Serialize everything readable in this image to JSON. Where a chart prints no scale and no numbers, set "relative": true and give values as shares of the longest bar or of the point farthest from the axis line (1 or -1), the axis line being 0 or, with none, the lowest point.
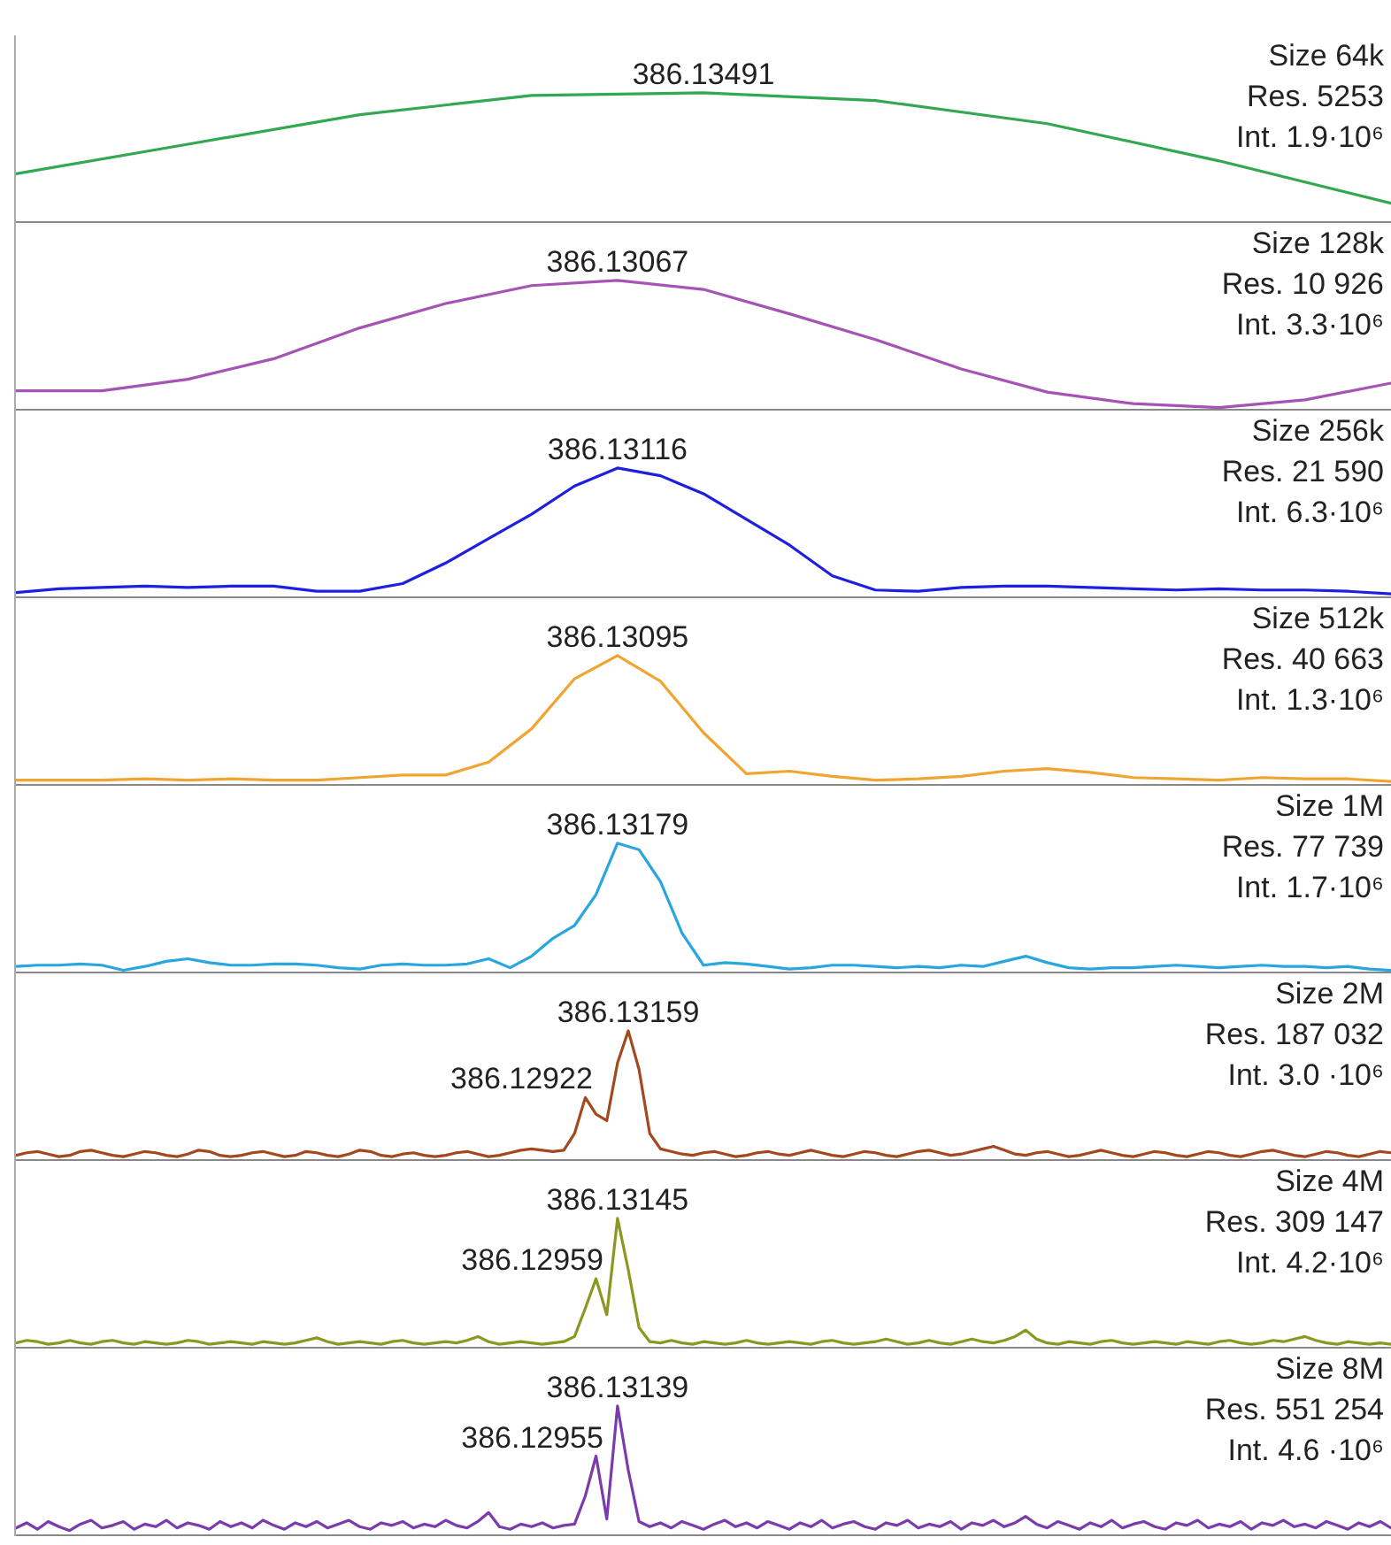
{
  "chart_data": [
    {
      "type": "line",
      "relative": true,
      "tick_labels": false,
      "color": "#33a852",
      "categories": [
        null,
        null,
        null,
        null,
        null,
        null,
        null,
        null,
        null
      ],
      "values": [
        0.37,
        0.6,
        0.83,
        0.98,
        1.0,
        0.94,
        0.76,
        0.47,
        0.14
      ],
      "annotations": [
        {
          "text": "386.13491",
          "y": 1.0
        },
        "Size 64k",
        "Res. 5253",
        "Int. 1.9·10⁶"
      ]
    },
    {
      "type": "line",
      "relative": true,
      "tick_labels": false,
      "color": "#a553b5",
      "categories": [
        null,
        null,
        null,
        null,
        null,
        null,
        null,
        null,
        null,
        null,
        null,
        null,
        null,
        null,
        null,
        null,
        null
      ],
      "values": [
        0.14,
        0.14,
        0.23,
        0.39,
        0.63,
        0.82,
        0.96,
        1.0,
        0.93,
        0.74,
        0.54,
        0.31,
        0.13,
        0.04,
        0.01,
        0.07,
        0.2
      ],
      "annotations": [
        {
          "text": "386.13067",
          "y": 1.0
        },
        "Size 128k",
        "Res. 10 926",
        "Int. 3.3·10⁶"
      ]
    },
    {
      "type": "line",
      "relative": true,
      "tick_labels": false,
      "color": "#1f1fe0",
      "categories": [
        null,
        null,
        null,
        null,
        null,
        null,
        null,
        null,
        null,
        null,
        null,
        null,
        null,
        null,
        null,
        null,
        null,
        null,
        null,
        null,
        null,
        null,
        null,
        null,
        null,
        null,
        null,
        null,
        null,
        null,
        null,
        null,
        null
      ],
      "values": [
        0.03,
        0.06,
        0.07,
        0.08,
        0.07,
        0.08,
        0.08,
        0.04,
        0.04,
        0.1,
        0.26,
        0.45,
        0.64,
        0.86,
        1.0,
        0.94,
        0.8,
        0.6,
        0.4,
        0.16,
        0.05,
        0.04,
        0.07,
        0.08,
        0.08,
        0.07,
        0.06,
        0.05,
        0.06,
        0.05,
        0.05,
        0.04,
        0.02
      ],
      "annotations": [
        {
          "text": "386.13116",
          "y": 1.0
        },
        "Size 256k",
        "Res. 21 590",
        "Int. 6.3·10⁶"
      ]
    },
    {
      "type": "line",
      "relative": true,
      "tick_labels": false,
      "color": "#f0a532",
      "categories": [
        null,
        null,
        null,
        null,
        null,
        null,
        null,
        null,
        null,
        null,
        null,
        null,
        null,
        null,
        null,
        null,
        null,
        null,
        null,
        null,
        null,
        null,
        null,
        null,
        null,
        null,
        null,
        null,
        null,
        null,
        null,
        null,
        null
      ],
      "values": [
        0.03,
        0.03,
        0.03,
        0.04,
        0.03,
        0.04,
        0.03,
        0.03,
        0.05,
        0.07,
        0.07,
        0.17,
        0.43,
        0.82,
        1.0,
        0.8,
        0.4,
        0.08,
        0.1,
        0.06,
        0.03,
        0.04,
        0.06,
        0.1,
        0.12,
        0.09,
        0.05,
        0.04,
        0.03,
        0.05,
        0.04,
        0.04,
        0.02
      ],
      "annotations": [
        {
          "text": "386.13095",
          "y": 1.0
        },
        "Size 512k",
        "Res. 40 663",
        "Int. 1.3·10⁶"
      ]
    },
    {
      "type": "line",
      "relative": true,
      "tick_labels": false,
      "color": "#2aa6de",
      "categories": [
        null,
        null,
        null,
        null,
        null,
        null,
        null,
        null,
        null,
        null,
        null,
        null,
        null,
        null,
        null,
        null,
        null,
        null,
        null,
        null,
        null,
        null,
        null,
        null,
        null,
        null,
        null,
        null,
        null,
        null,
        null,
        null,
        null,
        null,
        null,
        null,
        null,
        null,
        null,
        null,
        null,
        null,
        null,
        null,
        null,
        null,
        null,
        null,
        null,
        null,
        null,
        null,
        null,
        null,
        null,
        null,
        null,
        null,
        null,
        null,
        null,
        null,
        null,
        null,
        null
      ],
      "values": [
        0.04,
        0.05,
        0.05,
        0.06,
        0.05,
        0.01,
        0.04,
        0.08,
        0.1,
        0.07,
        0.05,
        0.05,
        0.06,
        0.06,
        0.05,
        0.03,
        0.02,
        0.05,
        0.06,
        0.05,
        0.05,
        0.06,
        0.1,
        0.03,
        0.12,
        0.26,
        0.36,
        0.6,
        1.0,
        0.95,
        0.7,
        0.3,
        0.05,
        0.07,
        0.06,
        0.04,
        0.02,
        0.03,
        0.05,
        0.05,
        0.04,
        0.03,
        0.04,
        0.03,
        0.05,
        0.04,
        0.08,
        0.12,
        0.07,
        0.03,
        0.02,
        0.03,
        0.03,
        0.04,
        0.05,
        0.04,
        0.03,
        0.04,
        0.05,
        0.04,
        0.04,
        0.03,
        0.04,
        0.02,
        0.01
      ],
      "annotations": [
        {
          "text": "386.13179",
          "y": 1.0
        },
        "Size 1M",
        "Res. 77 739",
        "Int. 1.7·10⁶"
      ]
    },
    {
      "type": "line",
      "relative": true,
      "tick_labels": false,
      "color": "#a3481f",
      "categories": [
        null,
        null,
        null,
        null,
        null,
        null,
        null,
        null,
        null,
        null,
        null,
        null,
        null,
        null,
        null,
        null,
        null,
        null,
        null,
        null,
        null,
        null,
        null,
        null,
        null,
        null,
        null,
        null,
        null,
        null,
        null,
        null,
        null,
        null,
        null,
        null,
        null,
        null,
        null,
        null,
        null,
        null,
        null,
        null,
        null,
        null,
        null,
        null,
        null,
        null,
        null,
        null,
        null,
        null,
        null,
        null,
        null,
        null,
        null,
        null,
        null,
        null,
        null,
        null,
        null,
        null,
        null,
        null,
        null,
        null,
        null,
        null,
        null,
        null,
        null,
        null,
        null,
        null,
        null,
        null,
        null,
        null,
        null,
        null,
        null,
        null,
        null,
        null,
        null,
        null,
        null,
        null,
        null,
        null,
        null,
        null,
        null,
        null,
        null,
        null,
        null,
        null,
        null,
        null,
        null,
        null,
        null,
        null,
        null,
        null,
        null,
        null,
        null,
        null,
        null,
        null,
        null,
        null,
        null,
        null,
        null,
        null,
        null,
        null,
        null,
        null,
        null,
        null,
        null
      ],
      "values": [
        0.03,
        0.05,
        0.06,
        0.04,
        0.02,
        0.03,
        0.06,
        0.07,
        0.05,
        0.03,
        0.02,
        0.04,
        0.06,
        0.05,
        0.03,
        0.02,
        0.04,
        0.07,
        0.06,
        0.03,
        0.02,
        0.03,
        0.05,
        0.06,
        0.04,
        0.02,
        0.03,
        0.06,
        0.05,
        0.03,
        0.02,
        0.04,
        0.07,
        0.06,
        0.03,
        0.02,
        0.04,
        0.05,
        0.03,
        0.02,
        0.03,
        0.05,
        0.06,
        0.04,
        0.02,
        0.03,
        0.05,
        0.07,
        0.08,
        0.07,
        0.06,
        0.07,
        0.2,
        0.48,
        0.35,
        0.3,
        0.75,
        1.0,
        0.7,
        0.2,
        0.08,
        0.06,
        0.04,
        0.03,
        0.05,
        0.06,
        0.04,
        0.02,
        0.03,
        0.05,
        0.06,
        0.04,
        0.03,
        0.05,
        0.07,
        0.05,
        0.03,
        0.02,
        0.04,
        0.06,
        0.05,
        0.03,
        0.02,
        0.04,
        0.06,
        0.07,
        0.05,
        0.03,
        0.04,
        0.06,
        0.08,
        0.1,
        0.07,
        0.04,
        0.03,
        0.05,
        0.06,
        0.04,
        0.02,
        0.03,
        0.05,
        0.07,
        0.05,
        0.03,
        0.02,
        0.04,
        0.06,
        0.05,
        0.03,
        0.02,
        0.04,
        0.06,
        0.05,
        0.03,
        0.02,
        0.04,
        0.06,
        0.07,
        0.05,
        0.03,
        0.02,
        0.04,
        0.06,
        0.05,
        0.03,
        0.02,
        0.04,
        0.06,
        0.05
      ],
      "annotations": [
        {
          "text": "386.13159",
          "y": 1.0
        },
        "386.12922",
        "Size 2M",
        "Res. 187 032",
        "Int. 3.0 ·10⁶"
      ]
    },
    {
      "type": "line",
      "relative": true,
      "tick_labels": false,
      "color": "#8a981f",
      "categories": [
        null,
        null,
        null,
        null,
        null,
        null,
        null,
        null,
        null,
        null,
        null,
        null,
        null,
        null,
        null,
        null,
        null,
        null,
        null,
        null,
        null,
        null,
        null,
        null,
        null,
        null,
        null,
        null,
        null,
        null,
        null,
        null,
        null,
        null,
        null,
        null,
        null,
        null,
        null,
        null,
        null,
        null,
        null,
        null,
        null,
        null,
        null,
        null,
        null,
        null,
        null,
        null,
        null,
        null,
        null,
        null,
        null,
        null,
        null,
        null,
        null,
        null,
        null,
        null,
        null,
        null,
        null,
        null,
        null,
        null,
        null,
        null,
        null,
        null,
        null,
        null,
        null,
        null,
        null,
        null,
        null,
        null,
        null,
        null,
        null,
        null,
        null,
        null,
        null,
        null,
        null,
        null,
        null,
        null,
        null,
        null,
        null,
        null,
        null,
        null,
        null,
        null,
        null,
        null,
        null,
        null,
        null,
        null,
        null,
        null,
        null,
        null,
        null,
        null,
        null,
        null,
        null,
        null,
        null,
        null,
        null,
        null,
        null,
        null,
        null,
        null,
        null,
        null,
        null
      ],
      "values": [
        0.03,
        0.05,
        0.04,
        0.02,
        0.03,
        0.05,
        0.03,
        0.02,
        0.04,
        0.05,
        0.03,
        0.02,
        0.04,
        0.03,
        0.02,
        0.03,
        0.05,
        0.04,
        0.02,
        0.03,
        0.04,
        0.03,
        0.02,
        0.04,
        0.03,
        0.02,
        0.03,
        0.05,
        0.07,
        0.04,
        0.02,
        0.03,
        0.04,
        0.03,
        0.02,
        0.04,
        0.05,
        0.03,
        0.02,
        0.03,
        0.04,
        0.03,
        0.05,
        0.08,
        0.04,
        0.02,
        0.03,
        0.04,
        0.03,
        0.02,
        0.03,
        0.04,
        0.08,
        0.3,
        0.53,
        0.25,
        1.0,
        0.6,
        0.15,
        0.04,
        0.03,
        0.05,
        0.03,
        0.02,
        0.04,
        0.03,
        0.02,
        0.03,
        0.05,
        0.03,
        0.02,
        0.03,
        0.04,
        0.03,
        0.02,
        0.04,
        0.05,
        0.03,
        0.02,
        0.03,
        0.04,
        0.06,
        0.04,
        0.02,
        0.03,
        0.05,
        0.03,
        0.02,
        0.04,
        0.06,
        0.04,
        0.03,
        0.05,
        0.08,
        0.13,
        0.06,
        0.03,
        0.02,
        0.04,
        0.03,
        0.02,
        0.04,
        0.05,
        0.03,
        0.02,
        0.03,
        0.04,
        0.03,
        0.02,
        0.04,
        0.03,
        0.02,
        0.04,
        0.05,
        0.03,
        0.02,
        0.03,
        0.05,
        0.04,
        0.06,
        0.08,
        0.05,
        0.03,
        0.02,
        0.04,
        0.03,
        0.02,
        0.03,
        0.02
      ],
      "annotations": [
        {
          "text": "386.13145",
          "y": 1.0
        },
        "386.12959",
        "Size 4M",
        "Res. 309 147",
        "Int. 4.2·10⁶"
      ]
    },
    {
      "type": "line",
      "relative": true,
      "tick_labels": false,
      "color": "#7b3bab",
      "categories": [
        null,
        null,
        null,
        null,
        null,
        null,
        null,
        null,
        null,
        null,
        null,
        null,
        null,
        null,
        null,
        null,
        null,
        null,
        null,
        null,
        null,
        null,
        null,
        null,
        null,
        null,
        null,
        null,
        null,
        null,
        null,
        null,
        null,
        null,
        null,
        null,
        null,
        null,
        null,
        null,
        null,
        null,
        null,
        null,
        null,
        null,
        null,
        null,
        null,
        null,
        null,
        null,
        null,
        null,
        null,
        null,
        null,
        null,
        null,
        null,
        null,
        null,
        null,
        null,
        null,
        null,
        null,
        null,
        null,
        null,
        null,
        null,
        null,
        null,
        null,
        null,
        null,
        null,
        null,
        null,
        null,
        null,
        null,
        null,
        null,
        null,
        null,
        null,
        null,
        null,
        null,
        null,
        null,
        null,
        null,
        null,
        null,
        null,
        null,
        null,
        null,
        null,
        null,
        null,
        null,
        null,
        null,
        null,
        null,
        null,
        null,
        null,
        null,
        null,
        null,
        null,
        null,
        null,
        null,
        null,
        null,
        null,
        null,
        null,
        null,
        null,
        null,
        null,
        null
      ],
      "values": [
        0.05,
        0.09,
        0.04,
        0.1,
        0.06,
        0.03,
        0.08,
        0.11,
        0.05,
        0.07,
        0.1,
        0.04,
        0.08,
        0.06,
        0.11,
        0.05,
        0.09,
        0.07,
        0.04,
        0.1,
        0.06,
        0.09,
        0.05,
        0.11,
        0.07,
        0.04,
        0.09,
        0.06,
        0.1,
        0.05,
        0.08,
        0.11,
        0.06,
        0.04,
        0.09,
        0.07,
        0.1,
        0.05,
        0.08,
        0.06,
        0.11,
        0.07,
        0.05,
        0.1,
        0.17,
        0.06,
        0.04,
        0.08,
        0.06,
        0.09,
        0.05,
        0.07,
        0.08,
        0.3,
        0.61,
        0.12,
        1.0,
        0.5,
        0.1,
        0.06,
        0.09,
        0.05,
        0.1,
        0.07,
        0.04,
        0.08,
        0.11,
        0.06,
        0.09,
        0.05,
        0.1,
        0.07,
        0.04,
        0.09,
        0.06,
        0.11,
        0.05,
        0.08,
        0.1,
        0.06,
        0.04,
        0.09,
        0.07,
        0.11,
        0.05,
        0.08,
        0.06,
        0.1,
        0.04,
        0.09,
        0.07,
        0.11,
        0.06,
        0.09,
        0.14,
        0.08,
        0.05,
        0.1,
        0.07,
        0.04,
        0.09,
        0.06,
        0.11,
        0.05,
        0.08,
        0.1,
        0.06,
        0.04,
        0.09,
        0.07,
        0.11,
        0.05,
        0.08,
        0.06,
        0.1,
        0.04,
        0.09,
        0.07,
        0.11,
        0.06,
        0.08,
        0.05,
        0.1,
        0.07,
        0.04,
        0.09,
        0.06,
        0.1,
        0.05
      ],
      "annotations": [
        {
          "text": "386.13139",
          "y": 1.0
        },
        "386.12955",
        "Size 8M",
        "Res. 551 254",
        "Int. 4.6 ·10⁶"
      ]
    }
  ]
}
